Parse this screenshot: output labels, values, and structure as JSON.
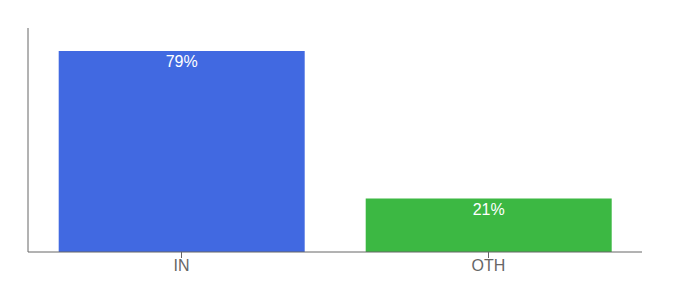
{
  "chart_data": {
    "type": "bar",
    "categories": [
      "IN",
      "OTH"
    ],
    "values": [
      79,
      21
    ],
    "value_labels": [
      "79%",
      "21%"
    ],
    "colors": [
      "#4169E1",
      "#3CB843"
    ],
    "ylim": [
      0,
      88
    ],
    "data_labels": true,
    "tick_labels": "x"
  }
}
